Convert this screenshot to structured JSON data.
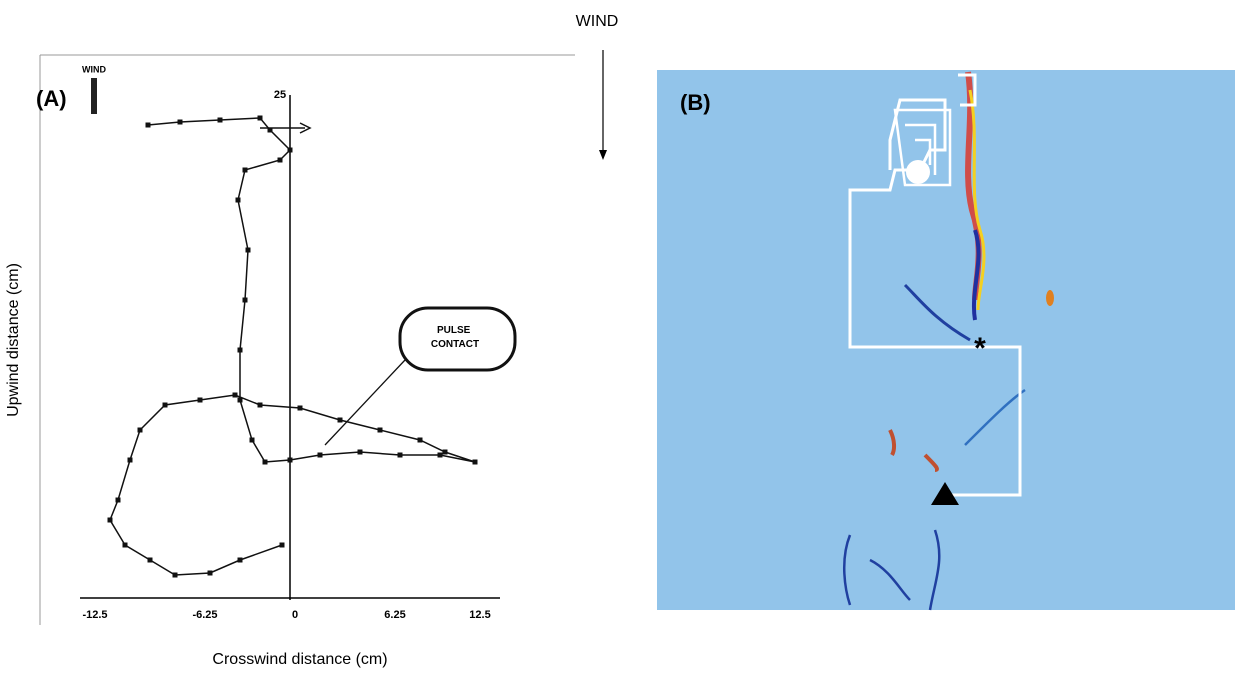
{
  "header": {
    "wind_label": "WIND"
  },
  "panel_a": {
    "label": "(A)",
    "wind_label": "WIND",
    "y_top_tick": "25",
    "callout": "PULSE CONTACT",
    "x_ticks": [
      "-12.5",
      "-6.25",
      "0",
      "6.25",
      "12.5"
    ]
  },
  "panel_b": {
    "label": "(B)"
  },
  "axes": {
    "y_label": "Upwind distance (cm)",
    "x_label": "Crosswind distance (cm)"
  }
}
